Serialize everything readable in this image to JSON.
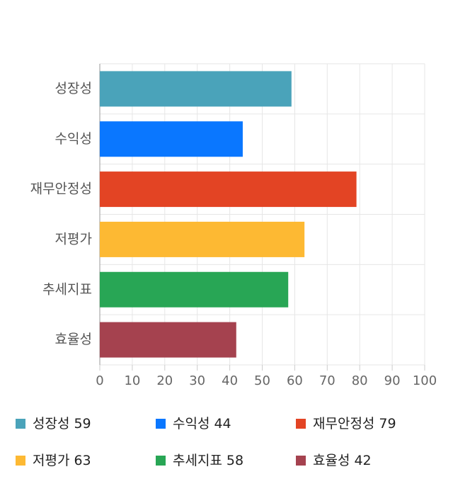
{
  "chart_data": {
    "type": "bar",
    "orientation": "horizontal",
    "categories": [
      "성장성",
      "수익성",
      "재무안정성",
      "저평가",
      "추세지표",
      "효율성"
    ],
    "values": [
      59,
      44,
      79,
      63,
      58,
      42
    ],
    "colors": [
      "#4aa3ba",
      "#0a77ff",
      "#e34424",
      "#fdb933",
      "#28a655",
      "#a5424f"
    ],
    "xlim": [
      0,
      100
    ],
    "xticks": [
      0,
      10,
      20,
      30,
      40,
      50,
      60,
      70,
      80,
      90,
      100
    ],
    "grid": true
  }
}
